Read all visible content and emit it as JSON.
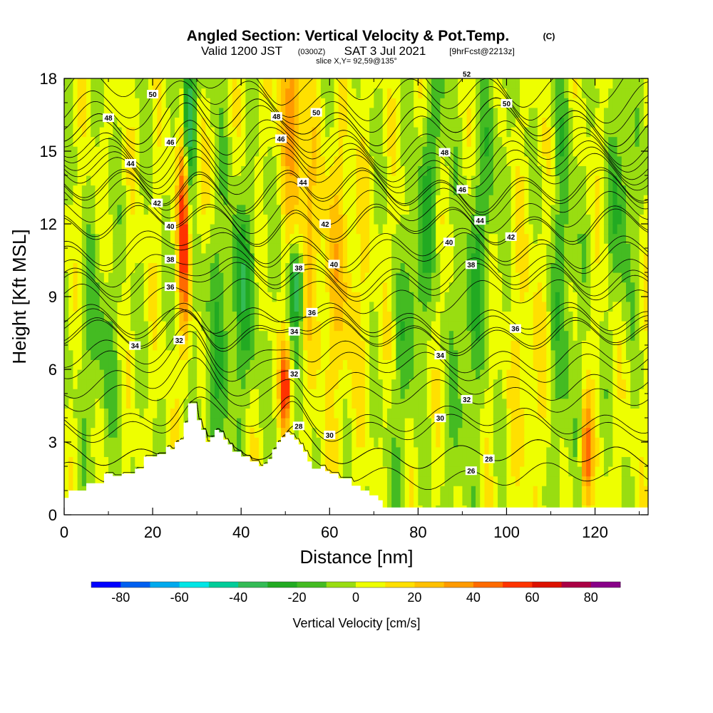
{
  "chart_data": {
    "type": "heatmap",
    "title": "Angled Section: Vertical Velocity & Pot.Temp.",
    "title_mark": "(C)",
    "subtitle_valid": "Valid 1200 JST",
    "subtitle_utc": "(0300Z)",
    "subtitle_date": "SAT 3 Jul 2021",
    "subtitle_fcst": "[9hrFcst@2213z]",
    "slice_label": "slice X,Y= 92,59@135°",
    "xlabel": "Distance [nm]",
    "ylabel": "Height [Kft MSL]",
    "xlim": [
      0,
      132
    ],
    "ylim": [
      0,
      18
    ],
    "xticks": [
      "0",
      "20",
      "40",
      "60",
      "80",
      "100",
      "120"
    ],
    "yticks": [
      "0",
      "3",
      "6",
      "9",
      "12",
      "15",
      "18"
    ],
    "colorbar": {
      "title": "Vertical Velocity [cm/s]",
      "ticks": [
        "-80",
        "-60",
        "-40",
        "-20",
        "0",
        "20",
        "40",
        "60",
        "80"
      ],
      "levels": [
        -90,
        -80,
        -70,
        -60,
        -50,
        -40,
        -30,
        -20,
        -10,
        0,
        10,
        20,
        30,
        40,
        50,
        60,
        70,
        80,
        90
      ],
      "colors": [
        "#0000ff",
        "#005ff0",
        "#00a9ee",
        "#00e6e6",
        "#00cc99",
        "#33bb55",
        "#22aa22",
        "#44bb22",
        "#99dd11",
        "#eeff00",
        "#ffe000",
        "#ffc000",
        "#ff9a00",
        "#ff6a00",
        "#ff3300",
        "#dd1100",
        "#aa0044",
        "#880088"
      ]
    },
    "terrain_kft": [
      [
        0,
        0.7
      ],
      [
        1,
        1
      ],
      [
        2,
        1
      ],
      [
        5,
        1.3
      ],
      [
        9,
        1.7
      ],
      [
        11,
        1.6
      ],
      [
        13,
        1.7
      ],
      [
        16,
        1.9
      ],
      [
        18,
        2.4
      ],
      [
        21,
        2.5
      ],
      [
        23,
        2.8
      ],
      [
        24,
        2.7
      ],
      [
        25,
        3
      ],
      [
        26,
        3.1
      ],
      [
        27,
        3.8
      ],
      [
        28,
        4.6
      ],
      [
        29,
        4.6
      ],
      [
        30,
        3.9
      ],
      [
        31,
        3.5
      ],
      [
        32,
        3
      ],
      [
        33,
        3.2
      ],
      [
        34,
        3.5
      ],
      [
        35,
        3.4
      ],
      [
        36,
        3.1
      ],
      [
        37,
        2.9
      ],
      [
        38,
        2.6
      ],
      [
        40,
        2.4
      ],
      [
        42,
        2.2
      ],
      [
        44,
        2.0
      ],
      [
        45,
        2.1
      ],
      [
        46,
        2.3
      ],
      [
        47,
        2.7
      ],
      [
        48,
        3
      ],
      [
        49,
        3.2
      ],
      [
        50,
        3.4
      ],
      [
        51,
        3.3
      ],
      [
        52,
        3.1
      ],
      [
        53,
        2.9
      ],
      [
        54,
        2.6
      ],
      [
        55,
        2.2
      ],
      [
        56,
        1.9
      ],
      [
        57,
        1.9
      ],
      [
        58,
        2
      ],
      [
        59,
        1.8
      ],
      [
        60,
        1.7
      ],
      [
        62,
        1.5
      ],
      [
        65,
        1.2
      ],
      [
        67,
        1
      ],
      [
        69,
        0.8
      ],
      [
        71,
        0.6
      ],
      [
        72,
        0.3
      ],
      [
        132,
        0.3
      ]
    ],
    "theta_levels": [
      {
        "label": "26",
        "base_kft": 1.6,
        "label_x": 92
      },
      {
        "label": "28",
        "base_kft": 2.5,
        "label_x": 96
      },
      {
        "label": "28",
        "base_kft": 2.5,
        "label_x": 53
      },
      {
        "label": "30",
        "base_kft": 3.6,
        "label_x": 85
      },
      {
        "label": "30",
        "base_kft": 3.9,
        "label_x": 60
      },
      {
        "label": "32",
        "base_kft": 4.9,
        "label_x": 91
      },
      {
        "label": "32",
        "base_kft": 5.4,
        "label_x": 52
      },
      {
        "label": "32",
        "base_kft": 6.1,
        "label_x": 26
      },
      {
        "label": "34",
        "base_kft": 6.5,
        "label_x": 85
      },
      {
        "label": "34",
        "base_kft": 7.3,
        "label_x": 52
      },
      {
        "label": "34",
        "base_kft": 7.4,
        "label_x": 16
      },
      {
        "label": "36",
        "base_kft": 7.8,
        "label_x": 102
      },
      {
        "label": "36",
        "base_kft": 8.0,
        "label_x": 56
      },
      {
        "label": "36",
        "base_kft": 9.0,
        "label_x": 24
      },
      {
        "label": "38",
        "base_kft": 9.6,
        "label_x": 92
      },
      {
        "label": "38",
        "base_kft": 9.8,
        "label_x": 53
      },
      {
        "label": "38",
        "base_kft": 10.2,
        "label_x": 24
      },
      {
        "label": "40",
        "base_kft": 10.8,
        "label_x": 87
      },
      {
        "label": "40",
        "base_kft": 11.0,
        "label_x": 61
      },
      {
        "label": "40",
        "base_kft": 12.0,
        "label_x": 24
      },
      {
        "label": "42",
        "base_kft": 11.9,
        "label_x": 101
      },
      {
        "label": "42",
        "base_kft": 12.5,
        "label_x": 59
      },
      {
        "label": "42",
        "base_kft": 13.3,
        "label_x": 21
      },
      {
        "label": "44",
        "base_kft": 13.0,
        "label_x": 94
      },
      {
        "label": "44",
        "base_kft": 13.4,
        "label_x": 54
      },
      {
        "label": "44",
        "base_kft": 14.3,
        "label_x": 15
      },
      {
        "label": "46",
        "base_kft": 14.0,
        "label_x": 90
      },
      {
        "label": "46",
        "base_kft": 14.6,
        "label_x": 49
      },
      {
        "label": "46",
        "base_kft": 15.3,
        "label_x": 24
      },
      {
        "label": "48",
        "base_kft": 15.0,
        "label_x": 86
      },
      {
        "label": "48",
        "base_kft": 15.9,
        "label_x": 48
      },
      {
        "label": "48",
        "base_kft": 16.2,
        "label_x": 10
      },
      {
        "label": "50",
        "base_kft": 16.2,
        "label_x": 100
      },
      {
        "label": "50",
        "base_kft": 16.7,
        "label_x": 57
      },
      {
        "label": "50",
        "base_kft": 17.1,
        "label_x": 20
      },
      {
        "label": "52",
        "base_kft": 17.8,
        "label_x": 91
      }
    ]
  }
}
